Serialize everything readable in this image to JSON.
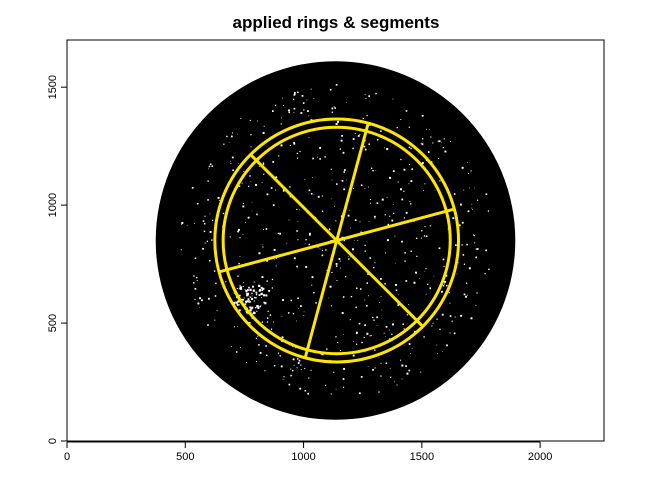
{
  "chart_data": {
    "type": "scatter",
    "title": "applied rings & segments",
    "xlabel": "",
    "ylabel": "",
    "xlim": [
      0,
      2270
    ],
    "ylim": [
      0,
      1700
    ],
    "x_ticks": [
      0,
      500,
      1000,
      1500,
      2000
    ],
    "y_ticks": [
      0,
      500,
      1000,
      1500
    ],
    "x_tick_labels": [
      "0",
      "500",
      "1000",
      "1500",
      "2000"
    ],
    "y_tick_labels": [
      "0",
      "500",
      "1000",
      "1500"
    ],
    "grid": false,
    "dish": {
      "center": [
        1135,
        850
      ],
      "radius": 760,
      "color": "#000000"
    },
    "rings": [
      {
        "center": [
          1140,
          850
        ],
        "radius": 515
      },
      {
        "center": [
          1140,
          850
        ],
        "radius": 480
      }
    ],
    "segments": {
      "center": [
        1140,
        850
      ],
      "count": 6,
      "radius": 515,
      "endpoint_angles_deg": [
        15,
        75,
        135,
        195,
        255,
        315
      ]
    },
    "overlay_color": "#ffe600",
    "specks_color": "#ffffff"
  }
}
